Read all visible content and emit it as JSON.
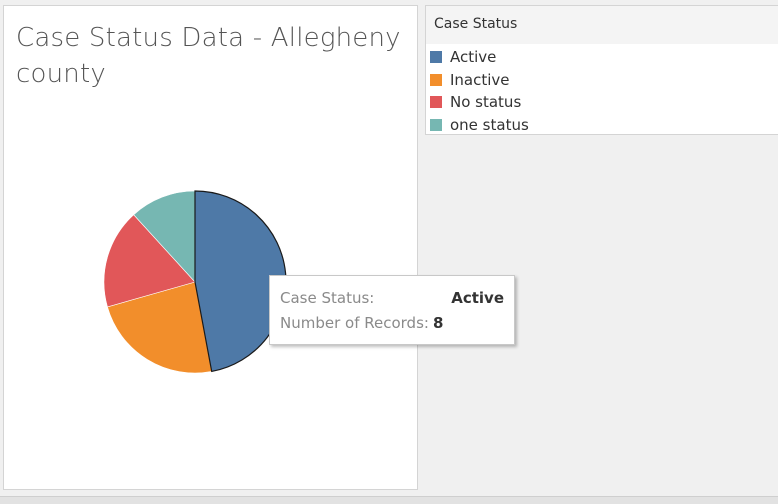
{
  "chart_data": {
    "type": "pie",
    "title": "Case Status Data - Allegheny county",
    "categories": [
      "Active",
      "Inactive",
      "No status",
      "one status"
    ],
    "values": [
      8,
      4,
      3,
      2
    ],
    "colors": [
      "#4e79a7",
      "#f28e2b",
      "#e15759",
      "#76b7b2"
    ],
    "legend": {
      "title": "Case Status",
      "placement": "top-right"
    },
    "highlighted": "Active"
  },
  "tooltip": {
    "rows": [
      {
        "label": "Case Status:",
        "value": "Active"
      },
      {
        "label": "Number of Records:",
        "value": "8"
      }
    ]
  }
}
